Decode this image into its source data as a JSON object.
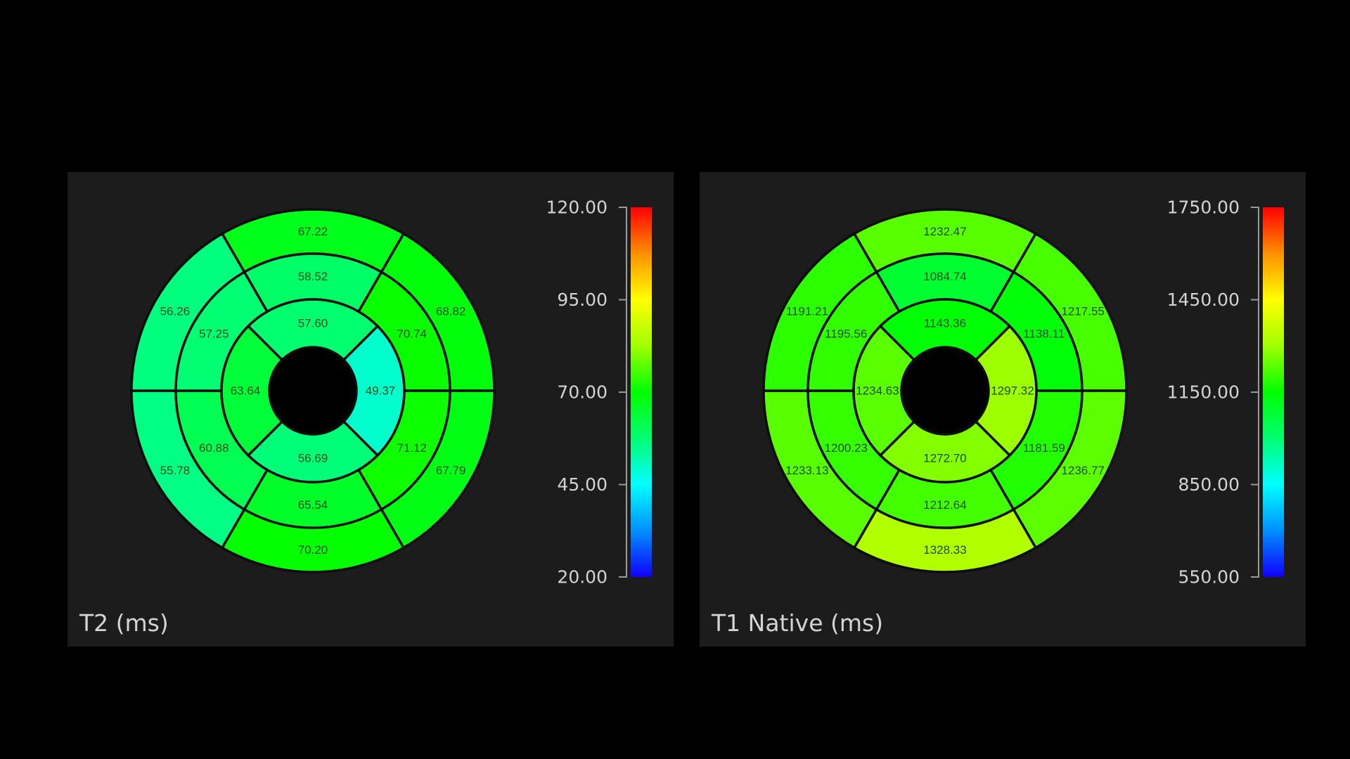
{
  "chart_data": [
    {
      "type": "bullseye",
      "title": "T2 (ms)",
      "scale": {
        "min": 20,
        "max": 120,
        "ticks": [
          "120.00",
          "95.00",
          "70.00",
          "45.00",
          "20.00"
        ]
      },
      "segments": {
        "basal": [
          "67.22",
          "68.82",
          "67.79",
          "70.20",
          "55.78",
          "56.26"
        ],
        "mid": [
          "58.52",
          "70.74",
          "71.12",
          "65.54",
          "60.88",
          "57.25"
        ],
        "apical": [
          "57.60",
          "49.37",
          "56.69",
          "63.64"
        ]
      }
    },
    {
      "type": "bullseye",
      "title": "T1 Native (ms)",
      "scale": {
        "min": 550,
        "max": 1750,
        "ticks": [
          "1750.00",
          "1450.00",
          "1150.00",
          "850.00",
          "550.00"
        ]
      },
      "segments": {
        "basal": [
          "1232.47",
          "1217.55",
          "1236.77",
          "1328.33",
          "1233.13",
          "1191.21"
        ],
        "mid": [
          "1084.74",
          "1138.11",
          "1181.59",
          "1212.64",
          "1200.23",
          "1195.56"
        ],
        "apical": [
          "1143.36",
          "1297.32",
          "1272.70",
          "1234.63"
        ]
      }
    }
  ],
  "colors": {
    "background": "#000000",
    "panel": "#1c1c1c",
    "text": "#d4d4d4",
    "segment_text": "#1e4a1e",
    "colorbar_stops": [
      "#1000ff",
      "#0090ff",
      "#00ffff",
      "#00ff70",
      "#00ff00",
      "#a0ff00",
      "#ffff00",
      "#ff9000",
      "#ff0000"
    ]
  }
}
